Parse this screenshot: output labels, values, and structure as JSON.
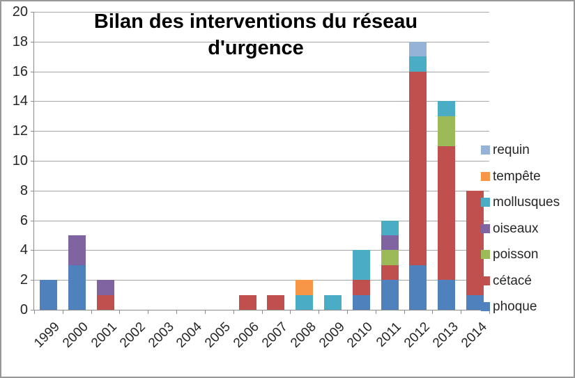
{
  "title": {
    "text": "Bilan des interventions du réseau d'urgence",
    "line1": "Bilan des interventions du réseau",
    "line2": "d'urgence"
  },
  "chart_data": {
    "type": "bar",
    "stacked": true,
    "title": "Bilan des interventions du réseau d'urgence",
    "categories": [
      "1999",
      "2000",
      "2001",
      "2002",
      "2003",
      "2004",
      "2005",
      "2006",
      "2007",
      "2008",
      "2009",
      "2010",
      "2011",
      "2012",
      "2013",
      "2014"
    ],
    "series": [
      {
        "name": "phoque",
        "color": "#4F81BD",
        "values": [
          2,
          3,
          0,
          0,
          0,
          0,
          0,
          0,
          0,
          0,
          0,
          1,
          2,
          3,
          2,
          1
        ]
      },
      {
        "name": "cétacé",
        "color": "#C0504D",
        "values": [
          0,
          0,
          1,
          0,
          0,
          0,
          0,
          1,
          1,
          0,
          0,
          1,
          1,
          13,
          9,
          7
        ]
      },
      {
        "name": "poisson",
        "color": "#9BBB59",
        "values": [
          0,
          0,
          0,
          0,
          0,
          0,
          0,
          0,
          0,
          0,
          0,
          0,
          1,
          0,
          2,
          0
        ]
      },
      {
        "name": "oiseaux",
        "color": "#8064A2",
        "values": [
          0,
          2,
          1,
          0,
          0,
          0,
          0,
          0,
          0,
          0,
          0,
          0,
          1,
          0,
          0,
          0
        ]
      },
      {
        "name": "mollusques",
        "color": "#4BACC6",
        "values": [
          0,
          0,
          0,
          0,
          0,
          0,
          0,
          0,
          0,
          1,
          1,
          2,
          1,
          1,
          1,
          0
        ]
      },
      {
        "name": "tempête",
        "color": "#F79646",
        "values": [
          0,
          0,
          0,
          0,
          0,
          0,
          0,
          0,
          0,
          1,
          0,
          0,
          0,
          0,
          0,
          0
        ]
      },
      {
        "name": "requin",
        "color": "#95B3D7",
        "values": [
          0,
          0,
          0,
          0,
          0,
          0,
          0,
          0,
          0,
          0,
          0,
          0,
          0,
          1,
          0,
          0
        ]
      }
    ],
    "ylim": [
      0,
      20
    ],
    "yticks": [
      0,
      2,
      4,
      6,
      8,
      10,
      12,
      14,
      16,
      18,
      20
    ],
    "grid": true,
    "legend_position": "right",
    "legend_top_to_bottom": [
      "requin",
      "tempête",
      "mollusques",
      "oiseaux",
      "poisson",
      "cétacé",
      "phoque"
    ]
  },
  "colors": {
    "gridline": "#a6a6a6",
    "axis": "#8c8c8c",
    "text": "#262626",
    "title_text": "#000000",
    "chart_border": "#989898",
    "background": "#ffffff"
  }
}
